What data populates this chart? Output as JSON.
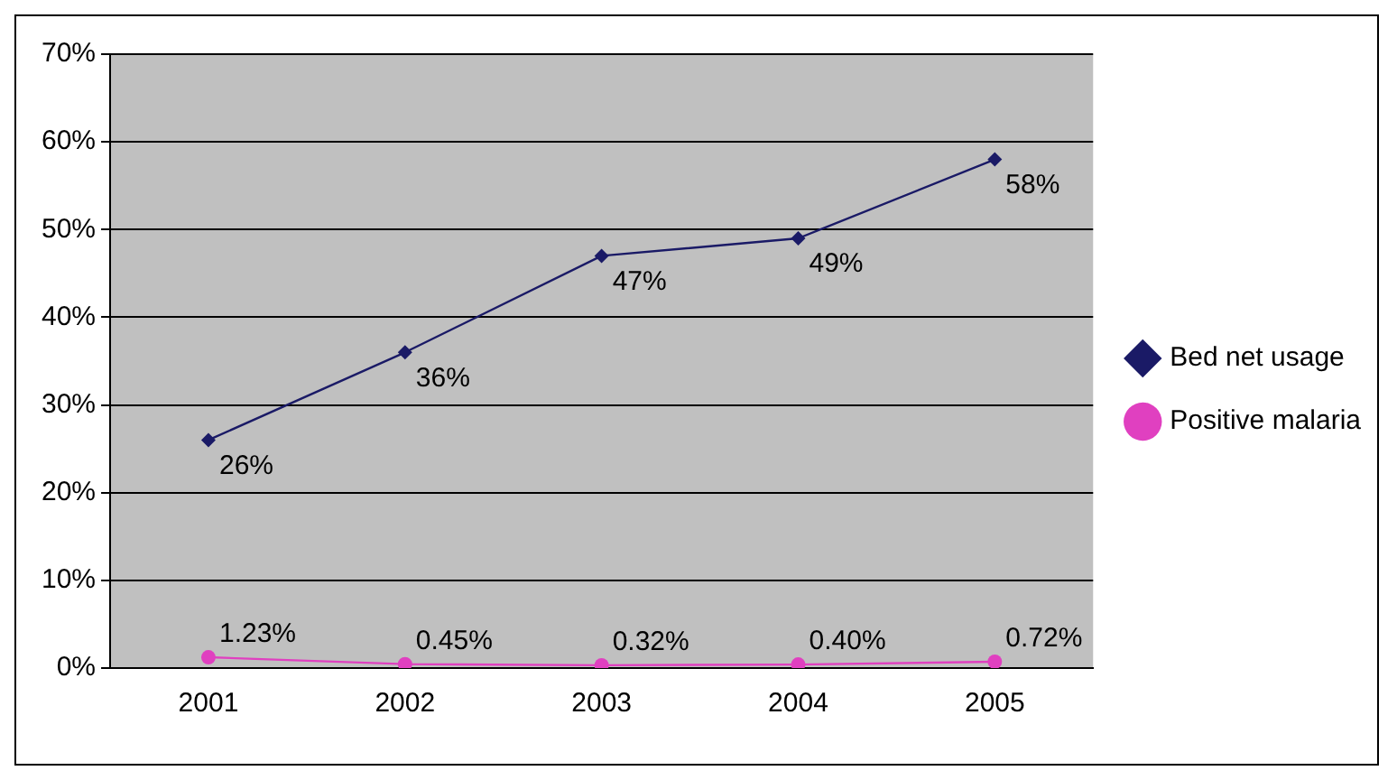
{
  "chart_data": {
    "type": "line",
    "categories": [
      "2001",
      "2002",
      "2003",
      "2004",
      "2005"
    ],
    "series": [
      {
        "name": "Bed net usage",
        "color": "#1a1a66",
        "marker": "diamond",
        "values": [
          26,
          36,
          47,
          49,
          58
        ],
        "value_labels": [
          "26%",
          "36%",
          "47%",
          "49%",
          "58%"
        ]
      },
      {
        "name": "Positive malaria",
        "color": "#e040c0",
        "marker": "circle",
        "values": [
          1.23,
          0.45,
          0.32,
          0.4,
          0.72
        ],
        "value_labels": [
          "1.23%",
          "0.45%",
          "0.32%",
          "0.40%",
          "0.72%"
        ]
      }
    ],
    "ylim": [
      0,
      70
    ],
    "yticks": [
      {
        "value": 0,
        "label": "0%"
      },
      {
        "value": 10,
        "label": "10%"
      },
      {
        "value": 20,
        "label": "20%"
      },
      {
        "value": 30,
        "label": "30%"
      },
      {
        "value": 40,
        "label": "40%"
      },
      {
        "value": 50,
        "label": "50%"
      },
      {
        "value": 60,
        "label": "60%"
      },
      {
        "value": 70,
        "label": "70%"
      }
    ],
    "grid": "y",
    "legend": "right",
    "line_style": "solid"
  }
}
